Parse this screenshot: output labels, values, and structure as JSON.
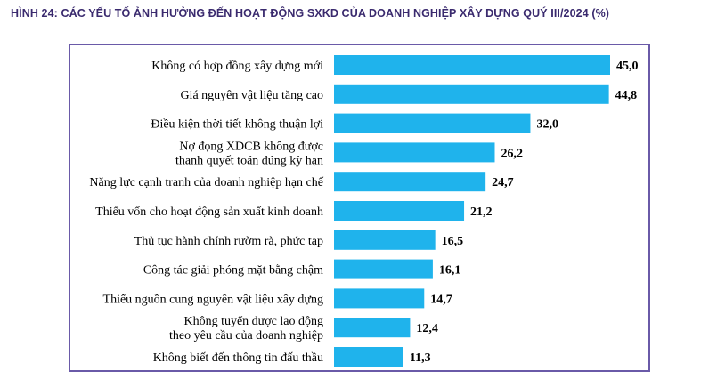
{
  "title": "HÌNH 24: CÁC YẾU TỐ ẢNH HƯỞNG ĐẾN HOẠT ĐỘNG SXKD CỦA DOANH NGHIỆP XÂY DỰNG QUÝ III/2024 (%)",
  "colors": {
    "bar": "#1fb3ec",
    "frame": "#6a5aa8",
    "title": "#3a2a6e"
  },
  "chart_data": {
    "type": "bar",
    "orientation": "horizontal",
    "categories": [
      [
        "Không có hợp đồng xây dựng mới"
      ],
      [
        "Giá nguyên vật liệu tăng cao"
      ],
      [
        "Điều kiện thời tiết không thuận lợi"
      ],
      [
        "Nợ đọng XDCB không được",
        "thanh quyết toán đúng kỳ hạn"
      ],
      [
        "Năng lực cạnh tranh của doanh nghiệp hạn chế"
      ],
      [
        "Thiếu vốn cho hoạt động sản xuất kinh doanh"
      ],
      [
        "Thủ tục hành chính rườm rà, phức tạp"
      ],
      [
        "Công tác giải phóng mặt bằng chậm"
      ],
      [
        "Thiếu nguồn cung nguyên vật liệu xây dựng"
      ],
      [
        "Không tuyển được lao động",
        "theo yêu cầu của doanh nghiệp"
      ],
      [
        "Không biết đến thông tin đấu thầu"
      ]
    ],
    "values": [
      45.0,
      44.8,
      32.0,
      26.2,
      24.7,
      21.2,
      16.5,
      16.1,
      14.7,
      12.4,
      11.3
    ],
    "value_labels": [
      "45,0",
      "44,8",
      "32,0",
      "26,2",
      "24,7",
      "21,2",
      "16,5",
      "16,1",
      "14,7",
      "12,4",
      "11,3"
    ],
    "xlim": [
      0,
      45
    ],
    "grid": false,
    "legend": "none"
  }
}
